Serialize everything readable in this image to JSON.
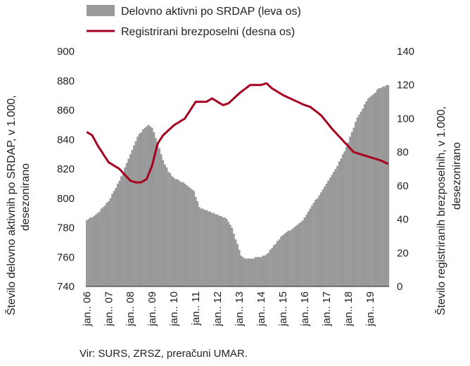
{
  "chart_data": {
    "type": "bar",
    "legend": {
      "placement": "top",
      "items": [
        {
          "label": "Delovno aktivni po SRDAP (leva os)",
          "kind": "bar"
        },
        {
          "label": "Registrirani brezposelni (desna os)",
          "kind": "line"
        }
      ]
    },
    "ylabel_left": [
      "Število delovno aktivnih po SRDAP, v 1.000,",
      "desezonirano"
    ],
    "ylabel_right": [
      "Število registriranih brezposelnih, v 1.000,",
      "desezonirano"
    ],
    "ylim_left": [
      740,
      900
    ],
    "ylim_right": [
      0,
      140
    ],
    "yticks_left": [
      "740",
      "760",
      "780",
      "800",
      "820",
      "840",
      "860",
      "880",
      "900"
    ],
    "yticks_right": [
      "0",
      "20",
      "40",
      "60",
      "80",
      "100",
      "120",
      "140"
    ],
    "xticks": [
      "jan.. 06",
      "jan.. 07",
      "jan.. 08",
      "jan.. 09",
      "jan.. 10",
      "jan.. 11",
      "jan.. 12",
      "jan.. 13",
      "jan.. 14",
      "jan.. 15",
      "jan.. 16",
      "jan.. 17",
      "jan.. 18",
      "jan.. 19"
    ],
    "source": "Vir: SURS, ZRSZ, preračuni UMAR.",
    "colors": {
      "bars": "#999999",
      "line": "#a50021"
    },
    "grid": false,
    "series_bars": {
      "name": "Delovno aktivni po SRDAP (leva os)",
      "anchors_month_value": [
        [
          0,
          785
        ],
        [
          6,
          790
        ],
        [
          12,
          798
        ],
        [
          18,
          812
        ],
        [
          24,
          830
        ],
        [
          28,
          842
        ],
        [
          32,
          848
        ],
        [
          34,
          850
        ],
        [
          36,
          848
        ],
        [
          39,
          838
        ],
        [
          42,
          826
        ],
        [
          45,
          818
        ],
        [
          48,
          814
        ],
        [
          54,
          810
        ],
        [
          60,
          805
        ],
        [
          63,
          794
        ],
        [
          66,
          792
        ],
        [
          72,
          789
        ],
        [
          78,
          786
        ],
        [
          81,
          780
        ],
        [
          84,
          769
        ],
        [
          86,
          761
        ],
        [
          88,
          759
        ],
        [
          90,
          759
        ],
        [
          96,
          760
        ],
        [
          99,
          762
        ],
        [
          102,
          766
        ],
        [
          108,
          775
        ],
        [
          114,
          780
        ],
        [
          120,
          786
        ],
        [
          126,
          797
        ],
        [
          132,
          808
        ],
        [
          138,
          820
        ],
        [
          144,
          835
        ],
        [
          150,
          855
        ],
        [
          156,
          868
        ],
        [
          162,
          875
        ],
        [
          166,
          877
        ]
      ],
      "values": [
        785,
        786,
        787,
        787,
        788,
        789,
        790,
        791,
        793,
        794,
        795,
        797,
        798,
        800,
        803,
        805,
        807,
        810,
        812,
        815,
        818,
        821,
        824,
        827,
        830,
        833,
        836,
        839,
        842,
        844,
        845,
        847,
        848,
        849,
        850,
        849,
        848,
        845,
        841,
        838,
        834,
        830,
        826,
        823,
        821,
        818,
        817,
        815,
        814,
        813,
        813,
        812,
        811,
        811,
        810,
        809,
        808,
        807,
        806,
        805,
        801,
        798,
        794,
        793,
        793,
        792,
        792,
        791,
        791,
        790,
        790,
        789,
        789,
        788,
        788,
        787,
        787,
        786,
        784,
        782,
        780,
        776,
        772,
        769,
        765,
        761,
        760,
        759,
        759,
        759,
        759,
        759,
        759,
        760,
        760,
        760,
        760,
        761,
        761,
        762,
        763,
        765,
        766,
        768,
        769,
        771,
        772,
        774,
        775,
        776,
        777,
        778,
        778,
        779,
        780,
        781,
        782,
        783,
        784,
        785,
        787,
        789,
        791,
        793,
        795,
        797,
        799,
        800,
        802,
        804,
        806,
        808,
        810,
        812,
        814,
        816,
        818,
        820,
        822,
        825,
        827,
        830,
        832,
        835,
        838,
        842,
        845,
        848,
        852,
        855,
        857,
        859,
        861,
        864,
        866,
        868,
        869,
        870,
        871,
        872,
        874,
        875,
        875,
        876,
        876,
        877,
        877
      ]
    },
    "series_line": {
      "name": "Registrirani brezposelni (desna os)",
      "anchors_month_value": [
        [
          0,
          92
        ],
        [
          3,
          90
        ],
        [
          6,
          84
        ],
        [
          12,
          74
        ],
        [
          18,
          70
        ],
        [
          24,
          63
        ],
        [
          27,
          62
        ],
        [
          30,
          62
        ],
        [
          33,
          64
        ],
        [
          36,
          72
        ],
        [
          39,
          85
        ],
        [
          42,
          90
        ],
        [
          48,
          96
        ],
        [
          54,
          100
        ],
        [
          60,
          110
        ],
        [
          66,
          110
        ],
        [
          69,
          112
        ],
        [
          72,
          110
        ],
        [
          75,
          108
        ],
        [
          78,
          109
        ],
        [
          84,
          115
        ],
        [
          90,
          120
        ],
        [
          96,
          120
        ],
        [
          99,
          121
        ],
        [
          102,
          118
        ],
        [
          108,
          114
        ],
        [
          114,
          111
        ],
        [
          120,
          108
        ],
        [
          123,
          107
        ],
        [
          129,
          102
        ],
        [
          135,
          94
        ],
        [
          141,
          87
        ],
        [
          147,
          80
        ],
        [
          153,
          78
        ],
        [
          159,
          76
        ],
        [
          162,
          75
        ],
        [
          166,
          73
        ]
      ],
      "values": [
        92.0,
        91.3,
        90.7,
        90.0,
        88.0,
        86.0,
        84.0,
        82.3,
        80.7,
        79.0,
        77.3,
        75.7,
        74.0,
        73.3,
        72.7,
        72.0,
        71.3,
        70.7,
        70.0,
        68.8,
        67.7,
        66.5,
        65.3,
        64.2,
        63.0,
        62.7,
        62.3,
        62.0,
        62.0,
        62.0,
        62.0,
        62.7,
        63.3,
        64.0,
        66.7,
        69.3,
        72.0,
        76.3,
        80.7,
        85.0,
        86.7,
        88.3,
        90.0,
        91.0,
        92.0,
        93.0,
        94.0,
        95.0,
        96.0,
        96.7,
        97.3,
        98.0,
        98.7,
        99.3,
        100.0,
        101.7,
        103.3,
        105.0,
        106.7,
        108.3,
        110.0,
        110.0,
        110.0,
        110.0,
        110.0,
        110.0,
        110.0,
        110.7,
        111.3,
        112.0,
        111.3,
        110.7,
        110.0,
        109.3,
        108.7,
        108.0,
        108.3,
        108.7,
        109.0,
        110.0,
        111.0,
        112.0,
        113.0,
        114.0,
        115.0,
        115.8,
        116.7,
        117.5,
        118.3,
        119.2,
        120.0,
        120.0,
        120.0,
        120.0,
        120.0,
        120.0,
        120.0,
        120.3,
        120.7,
        121.0,
        120.0,
        119.0,
        118.0,
        117.3,
        116.7,
        116.0,
        115.3,
        114.7,
        114.0,
        113.5,
        113.0,
        112.5,
        112.0,
        111.5,
        111.0,
        110.5,
        110.0,
        109.5,
        109.0,
        108.5,
        108.0,
        107.7,
        107.3,
        107.0,
        106.2,
        105.3,
        104.5,
        103.7,
        102.8,
        102.0,
        100.7,
        99.3,
        98.0,
        96.7,
        95.3,
        94.0,
        92.8,
        91.7,
        90.5,
        89.3,
        88.2,
        87.0,
        85.8,
        84.7,
        83.5,
        82.3,
        81.2,
        80.0,
        79.7,
        79.3,
        79.0,
        78.7,
        78.3,
        78.0,
        77.7,
        77.3,
        77.0,
        76.7,
        76.3,
        76.0,
        75.7,
        75.3,
        75.0,
        74.5,
        74.0,
        73.5,
        73.0
      ]
    }
  }
}
